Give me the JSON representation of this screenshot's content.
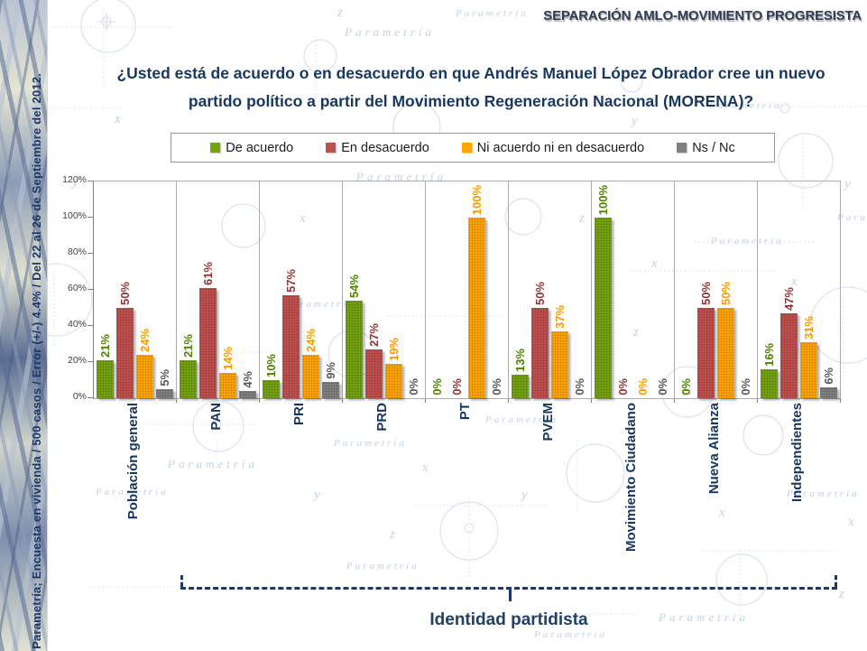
{
  "slide": {
    "header_title": "SEPARACIÓN AMLO-MOVIMIENTO PROGRESISTA",
    "question": "¿Usted está de acuerdo o en desacuerdo en que Andrés Manuel López Obrador cree un nuevo partido político a partir del Movimiento Regeneración Nacional (MORENA)?",
    "sidebar_text": "Parametría; Encuesta en vivienda / 500 casos / Error (+/-) 4.4% / Del 22 al 26 de Septiembre del 2012.",
    "bracket_label": "Identidad partidista"
  },
  "decor": {
    "watermark": "Parametría",
    "letters": {
      "x": "x",
      "y": "y",
      "z": "z"
    }
  },
  "chart_data": {
    "type": "bar",
    "title": "¿Usted está de acuerdo o en desacuerdo en que Andrés Manuel López Obrador cree un nuevo partido político a partir del Movimiento Regeneración Nacional (MORENA)?",
    "categories": [
      "Población general",
      "PAN",
      "PRI",
      "PRD",
      "PT",
      "PVEM",
      "Movimiento Ciudadano",
      "Nueva Alianza",
      "Independientes"
    ],
    "series": [
      {
        "name": "De acuerdo",
        "color": "#74a312",
        "label_color": "#4f8104",
        "values": [
          21,
          21,
          10,
          54,
          0,
          13,
          100,
          0,
          16
        ]
      },
      {
        "name": "En desacuerdo",
        "color": "#c0504d",
        "label_color": "#8c3836",
        "values": [
          50,
          61,
          57,
          27,
          0,
          50,
          0,
          50,
          47
        ]
      },
      {
        "name": "Ni acuerdo ni en desacuerdo",
        "color": "#ffa507",
        "label_color": "#f59b00",
        "values": [
          24,
          14,
          24,
          19,
          100,
          37,
          0,
          50,
          31
        ]
      },
      {
        "name": "Ns / Nc",
        "color": "#808080",
        "label_color": "#595959",
        "values": [
          5,
          4,
          9,
          0,
          0,
          0,
          0,
          0,
          6
        ]
      }
    ],
    "unit": "%",
    "ylim": [
      0,
      120
    ],
    "yticks": [
      "120%",
      "100%",
      "80%",
      "60%",
      "40%",
      "20%",
      "0%"
    ],
    "xlabel": "",
    "ylabel": "",
    "grid": false,
    "legend_position": "top",
    "annotation": {
      "bracket_label": "Identidad partidista",
      "bracket_span": [
        "PAN",
        "Independientes"
      ]
    }
  }
}
